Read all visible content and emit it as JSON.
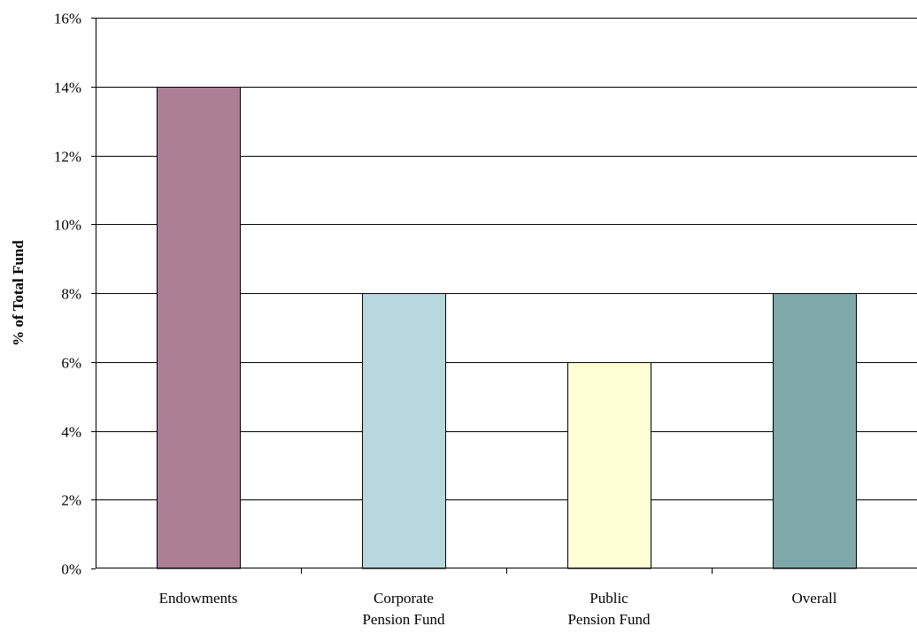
{
  "chart_data": {
    "type": "bar",
    "title": "",
    "xlabel": "",
    "ylabel": "% of Total Fund",
    "categories": [
      [
        "Endowments"
      ],
      [
        "Corporate",
        "Pension Fund"
      ],
      [
        "Public",
        "Pension Fund"
      ],
      [
        "Overall"
      ]
    ],
    "values": [
      14,
      8,
      6,
      8
    ],
    "colors": [
      "#ad7f95",
      "#b6d8de",
      "#ffffd6",
      "#7fa9a8"
    ],
    "ylim": [
      0,
      16
    ],
    "yticks": [
      0,
      2,
      4,
      6,
      8,
      10,
      12,
      14,
      16
    ],
    "ytick_labels": [
      "0%",
      "2%",
      "4%",
      "6%",
      "8%",
      "10%",
      "12%",
      "14%",
      "16%"
    ],
    "grid": true,
    "legend": "none"
  }
}
